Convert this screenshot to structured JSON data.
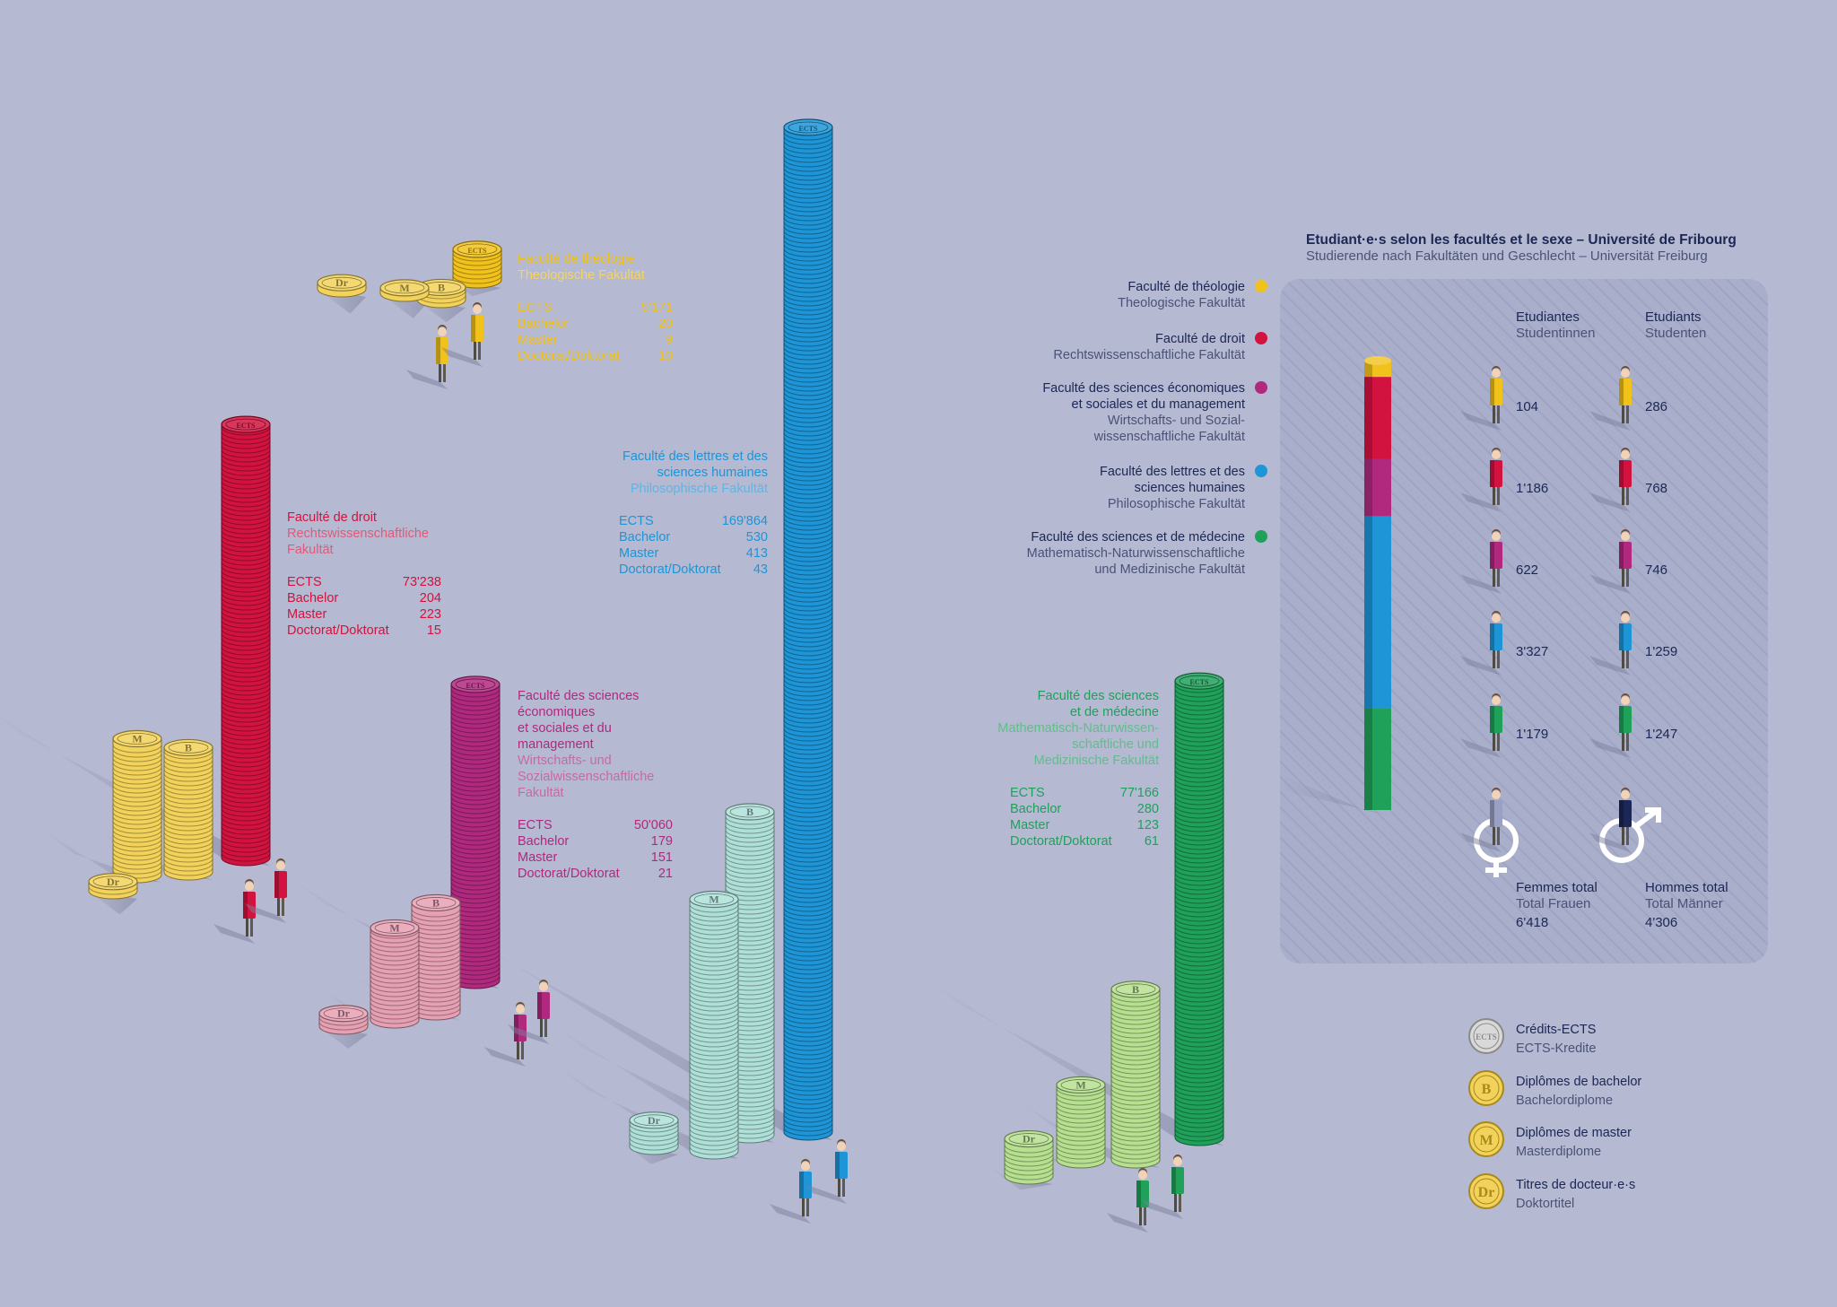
{
  "colors": {
    "background": "#b5b9d1",
    "theology": "#f1c21b",
    "law": "#d2133f",
    "econ": "#b0297e",
    "letters": "#1d95d7",
    "science": "#1fa15a",
    "navy": "#1b2754",
    "panel": "#a7acc9",
    "coin_gold": "#f2d25a",
    "coin_silver": "#d9d9d9",
    "male_total": "#1b2754",
    "female_total": "#9aa0c4"
  },
  "faculties": [
    {
      "key": "theology",
      "name_fr": "Faculté de théologie",
      "name_de": "Theologische Fakultät",
      "rows": [
        {
          "label": "ECTS",
          "value": "5'171"
        },
        {
          "label": "Bachelor",
          "value": "20"
        },
        {
          "label": "Master",
          "value": "9"
        },
        {
          "label": "Doctorat/Doktorat",
          "value": "10"
        }
      ]
    },
    {
      "key": "law",
      "name_fr": "Faculté de droit",
      "name_de": "Rechtswissenschaftliche Fakultät",
      "rows": [
        {
          "label": "ECTS",
          "value": "73'238"
        },
        {
          "label": "Bachelor",
          "value": "204"
        },
        {
          "label": "Master",
          "value": "223"
        },
        {
          "label": "Doctorat/Doktorat",
          "value": "15"
        }
      ]
    },
    {
      "key": "econ",
      "name_fr": "Faculté des sciences économiques et sociales et du management",
      "name_de": "Wirtschafts- und Sozialwissenschaftliche Fakultät",
      "rows": [
        {
          "label": "ECTS",
          "value": "50'060"
        },
        {
          "label": "Bachelor",
          "value": "179"
        },
        {
          "label": "Master",
          "value": "151"
        },
        {
          "label": "Doctorat/Doktorat",
          "value": "21"
        }
      ]
    },
    {
      "key": "letters",
      "name_fr": "Faculté des lettres et des sciences humaines",
      "name_de": "Philosophische Fakultät",
      "rows": [
        {
          "label": "ECTS",
          "value": "169'864"
        },
        {
          "label": "Bachelor",
          "value": "530"
        },
        {
          "label": "Master",
          "value": "413"
        },
        {
          "label": "Doctorat/Doktorat",
          "value": "43"
        }
      ]
    },
    {
      "key": "science",
      "name_fr": "Faculté des sciences et de médecine",
      "name_de": "Mathematisch-Naturwissenschaftliche und Medizinische Fakultät",
      "rows": [
        {
          "label": "ECTS",
          "value": "77'166"
        },
        {
          "label": "Bachelor",
          "value": "280"
        },
        {
          "label": "Master",
          "value": "123"
        },
        {
          "label": "Doctorat/Doktorat",
          "value": "61"
        }
      ]
    }
  ],
  "label_lines": {
    "theology": {
      "fr": [
        "Faculté de théologie"
      ],
      "de": [
        "Theologische Fakultät"
      ]
    },
    "law": {
      "fr": [
        "Faculté de droit"
      ],
      "de": [
        "Rechtswissenschaftliche",
        "Fakultät"
      ]
    },
    "econ": {
      "fr": [
        "Faculté des sciences",
        "économiques",
        "et sociales et du",
        "management"
      ],
      "de": [
        "Wirtschafts- und",
        "Sozialwissenschaftliche",
        "Fakultät"
      ]
    },
    "letters": {
      "fr": [
        "Faculté des lettres et des",
        "sciences humaines"
      ],
      "de": [
        "Philosophische Fakultät"
      ]
    },
    "science": {
      "fr": [
        "Faculté des sciences",
        "et de médecine"
      ],
      "de": [
        "Mathematisch-Naturwissen-",
        "schaftliche und",
        "Medizinische Fakultät"
      ]
    }
  },
  "legend_faculties": [
    {
      "key": "theology",
      "fr": [
        "Faculté de théologie"
      ],
      "de": [
        "Theologische Fakultät"
      ]
    },
    {
      "key": "law",
      "fr": [
        "Faculté de droit"
      ],
      "de": [
        "Rechtswissenschaftliche Fakultät"
      ]
    },
    {
      "key": "econ",
      "fr": [
        "Faculté des sciences économiques",
        "et sociales et du management"
      ],
      "de": [
        "Wirtschafts- und Sozial-",
        "wissenschaftliche Fakultät"
      ]
    },
    {
      "key": "letters",
      "fr": [
        "Faculté des lettres et des",
        "sciences humaines"
      ],
      "de": [
        "Philosophische Fakultät"
      ]
    },
    {
      "key": "science",
      "fr": [
        "Faculté des sciences et de médecine"
      ],
      "de": [
        "Mathematisch-Naturwissenschaftliche",
        "und Medizinische Fakultät"
      ]
    }
  ],
  "gender_panel": {
    "title_fr": "Etudiant·e·s selon les facultés et le sexe – Université de Fribourg",
    "title_de": "Studierende nach Fakultäten und Geschlecht – Universität Freiburg",
    "female_header_fr": "Etudiantes",
    "female_header_de": "Studentinnen",
    "male_header_fr": "Etudiants",
    "male_header_de": "Studenten",
    "female_total_fr": "Femmes total",
    "female_total_de": "Total Frauen",
    "female_total_value": "6'418",
    "male_total_fr": "Hommes total",
    "male_total_de": "Total Männer",
    "male_total_value": "4'306"
  },
  "coin_legend": [
    {
      "glyph": "ECTS",
      "fr": "Crédits-ECTS",
      "de": "ECTS-Kredite"
    },
    {
      "glyph": "B",
      "fr": "Diplômes de bachelor",
      "de": "Bachelordiplome"
    },
    {
      "glyph": "M",
      "fr": "Diplômes de master",
      "de": "Masterdiplome"
    },
    {
      "glyph": "Dr",
      "fr": "Titres de docteur·e·s",
      "de": "Doktortitel"
    }
  ],
  "chart_data": {
    "type": "bar",
    "title": "Etudiant·e·s selon les facultés et le sexe – Université de Fribourg",
    "subtitle": "Studierende nach Fakultäten und Geschlecht – Universität Freiburg",
    "categories": [
      "Faculté de théologie",
      "Faculté de droit",
      "Faculté des sciences économiques et sociales et du management",
      "Faculté des lettres et des sciences humaines",
      "Faculté des sciences et de médecine"
    ],
    "series": [
      {
        "name": "Etudiantes",
        "values": [
          104,
          1186,
          622,
          3327,
          1179
        ]
      },
      {
        "name": "Etudiants",
        "values": [
          286,
          768,
          746,
          1259,
          1247
        ]
      }
    ],
    "totals": {
      "Femmes total": 6418,
      "Hommes total": 4306
    },
    "ects": [
      5171,
      73238,
      50060,
      169864,
      77166
    ],
    "bachelor": [
      20,
      204,
      179,
      530,
      280
    ],
    "master": [
      9,
      223,
      151,
      413,
      123
    ],
    "doctorate": [
      10,
      15,
      21,
      43,
      61
    ]
  }
}
